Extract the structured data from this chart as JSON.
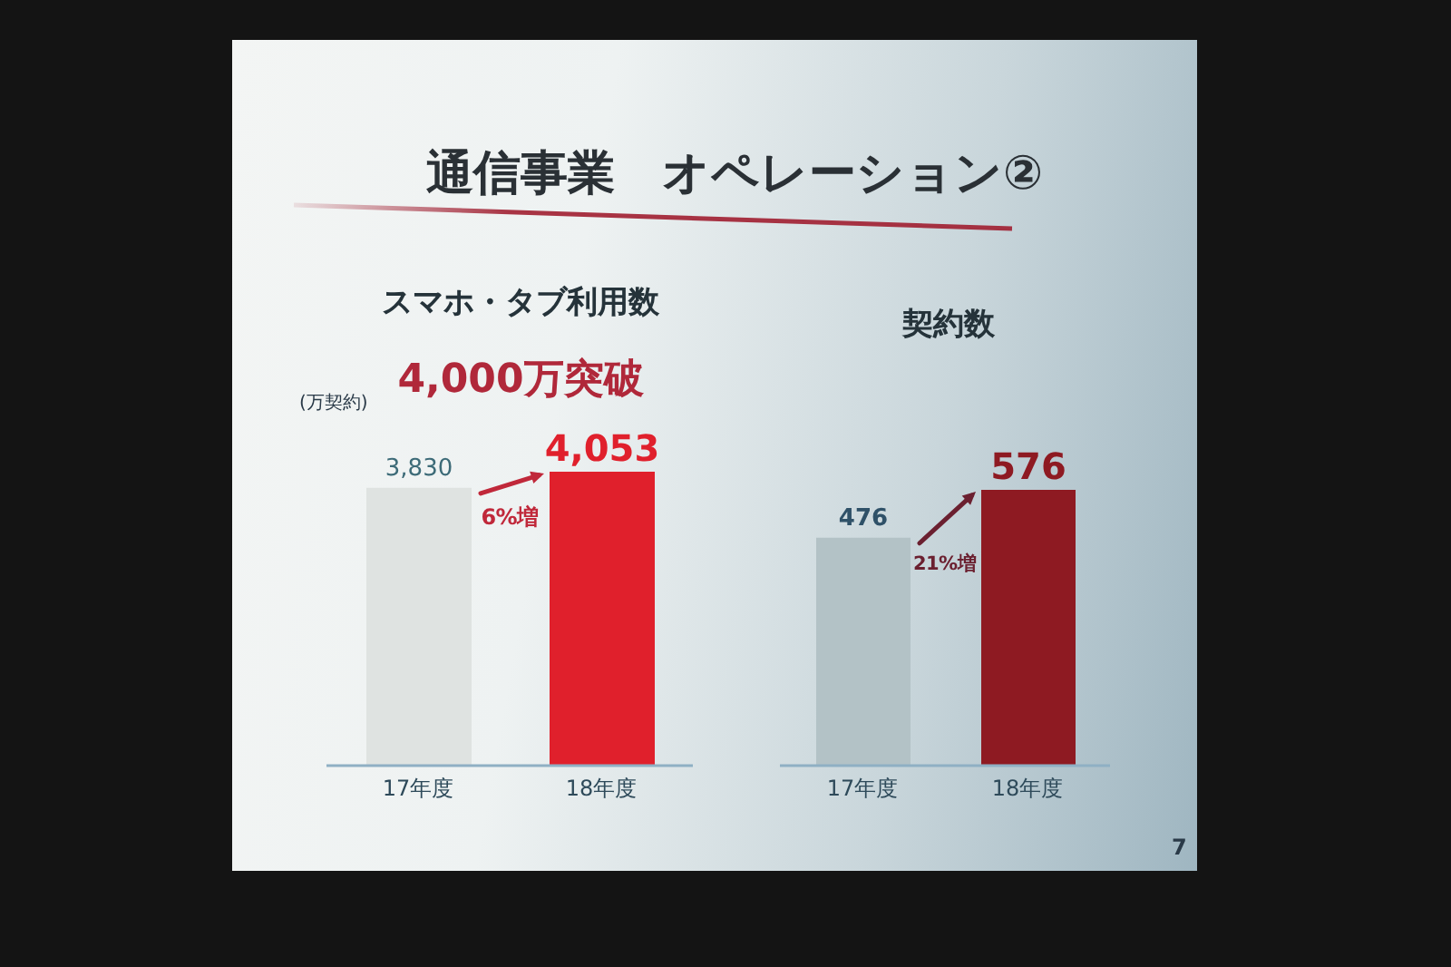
{
  "chart_data": [
    {
      "type": "bar",
      "title": "スマホ・タブ利用数",
      "ylabel": "(万契約)",
      "categories": [
        "17年度",
        "18年度"
      ],
      "values": [
        3830,
        4053
      ],
      "value_labels": [
        "3,830",
        "4,053"
      ],
      "colors": [
        "#dfe3e1",
        "#e0202c"
      ],
      "annotations": [
        "通信事業　オペレーション②",
        "4,000万突破",
        "6%増"
      ]
    },
    {
      "type": "bar",
      "title": "契約数",
      "categories": [
        "17年度",
        "18年度"
      ],
      "values": [
        476,
        576
      ],
      "colors": [
        "#b3c2c6",
        "#8e1a22"
      ],
      "data_labels": true,
      "annotations": [
        "21%増",
        "7"
      ]
    }
  ]
}
